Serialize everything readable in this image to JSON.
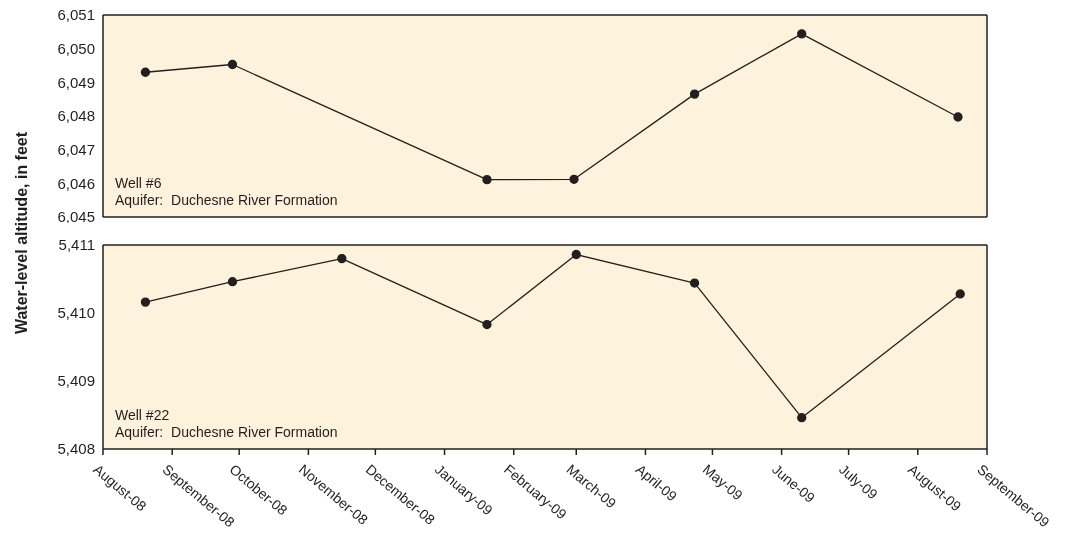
{
  "chart_data": [
    {
      "type": "line",
      "ylabel": "Water-level altitude, in feet",
      "annotations": [
        "Well #6",
        "Aquifer:  Duchesne River Formation"
      ],
      "marker": "circle",
      "line_style": "solid",
      "tick_labels": "y",
      "x": [
        "2008-08-20",
        "2008-09-28",
        "2009-01-20",
        "2009-02-28",
        "2009-04-23",
        "2009-06-10",
        "2009-08-19"
      ],
      "series": [
        {
          "color": "#231f20",
          "values": [
            6049.3,
            6049.53,
            6046.11,
            6046.12,
            6048.65,
            6050.44,
            6047.97
          ]
        }
      ],
      "xlim": [
        "2008-08-01",
        "2009-09-01"
      ],
      "xticks": [
        {
          "value": "2008-08-01",
          "label": null
        },
        {
          "value": "2008-09-01",
          "label": null
        },
        {
          "value": "2008-10-01",
          "label": null
        },
        {
          "value": "2008-11-01",
          "label": null
        },
        {
          "value": "2008-12-01",
          "label": null
        },
        {
          "value": "2009-01-01",
          "label": null
        },
        {
          "value": "2009-02-01",
          "label": null
        },
        {
          "value": "2009-03-01",
          "label": null
        },
        {
          "value": "2009-04-01",
          "label": null
        },
        {
          "value": "2009-05-01",
          "label": null
        },
        {
          "value": "2009-06-01",
          "label": null
        },
        {
          "value": "2009-07-01",
          "label": null
        },
        {
          "value": "2009-08-01",
          "label": null
        },
        {
          "value": "2009-09-01",
          "label": null
        }
      ],
      "ylim": [
        6045,
        6051
      ],
      "yticks": [
        {
          "value": 6045,
          "label": "6,045"
        },
        {
          "value": 6046,
          "label": "6,046"
        },
        {
          "value": 6047,
          "label": "6,047"
        },
        {
          "value": 6048,
          "label": "6,048"
        },
        {
          "value": 6049,
          "label": "6,049"
        },
        {
          "value": 6050,
          "label": "6,050"
        },
        {
          "value": 6051,
          "label": "6,051"
        }
      ]
    },
    {
      "type": "line",
      "annotations": [
        "Well #22",
        "Aquifer:  Duchesne River Formation"
      ],
      "marker": "circle",
      "line_style": "solid",
      "x": [
        "2008-08-20",
        "2008-09-28",
        "2008-11-16",
        "2009-01-20",
        "2009-03-01",
        "2009-04-23",
        "2009-06-10",
        "2009-08-20"
      ],
      "series": [
        {
          "color": "#231f20",
          "values": [
            5410.16,
            5410.46,
            5410.8,
            5409.83,
            5410.86,
            5410.44,
            5408.46,
            5410.28
          ]
        }
      ],
      "xlim": [
        "2008-08-01",
        "2009-09-01"
      ],
      "xticks": [
        {
          "value": "2008-08-01",
          "label": "August-08"
        },
        {
          "value": "2008-09-01",
          "label": "September-08"
        },
        {
          "value": "2008-10-01",
          "label": "October-08"
        },
        {
          "value": "2008-11-01",
          "label": "November-08"
        },
        {
          "value": "2008-12-01",
          "label": "December-08"
        },
        {
          "value": "2009-01-01",
          "label": "January-09"
        },
        {
          "value": "2009-02-01",
          "label": "February-09"
        },
        {
          "value": "2009-03-01",
          "label": "March-09"
        },
        {
          "value": "2009-04-01",
          "label": "April-09"
        },
        {
          "value": "2009-05-01",
          "label": "May-09"
        },
        {
          "value": "2009-06-01",
          "label": "June-09"
        },
        {
          "value": "2009-07-01",
          "label": "July-09"
        },
        {
          "value": "2009-08-01",
          "label": "August-09"
        },
        {
          "value": "2009-09-01",
          "label": "September-09"
        }
      ],
      "ylim": [
        5408,
        5411
      ],
      "yticks": [
        {
          "value": 5408,
          "label": "5,408"
        },
        {
          "value": 5409,
          "label": "5,409"
        },
        {
          "value": 5410,
          "label": "5,410"
        },
        {
          "value": 5411,
          "label": "5,411"
        }
      ]
    }
  ]
}
